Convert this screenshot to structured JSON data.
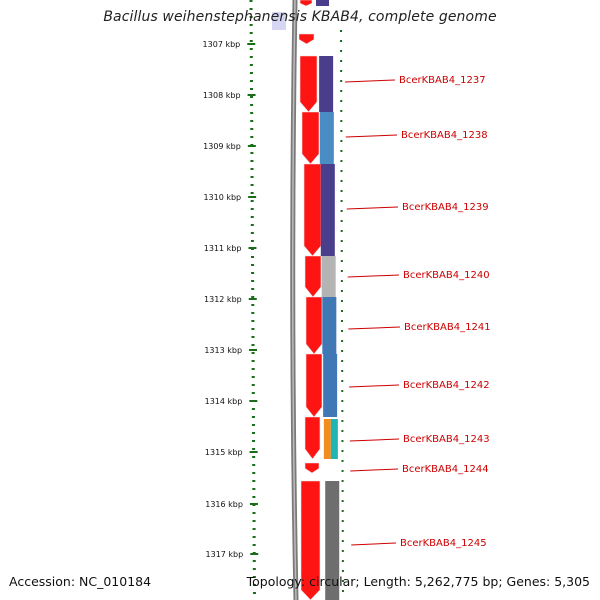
{
  "title": "Bacillus weihenstephanensis KBAB4, complete genome",
  "footer": {
    "accession": "Accession: NC_010184",
    "summary": "Topology: circular; Length: 5,262,775 bp; Genes: 5,305"
  },
  "colors": {
    "ruler": "#1a6e1a",
    "backbone_outer": "#7a7a7a",
    "backbone_inner": "#bcbcbc",
    "forward_gene": "#ff1414",
    "label": "#cc0000",
    "leader": "#cc0000"
  },
  "ruler": {
    "unit": "kbp",
    "ticks": [
      "1307 kbp",
      "1308 kbp",
      "1309 kbp",
      "1310 kbp",
      "1311 kbp",
      "1312 kbp",
      "1313 kbp",
      "1314 kbp",
      "1315 kbp",
      "1316 kbp",
      "1317 kbp"
    ]
  },
  "genes": [
    {
      "label": "BcerKBAB4_1237",
      "category_color": "#4a3d8c"
    },
    {
      "label": "BcerKBAB4_1238",
      "category_color": "#4a8cc4"
    },
    {
      "label": "BcerKBAB4_1239",
      "category_color": "#4a3d8c"
    },
    {
      "label": "BcerKBAB4_1240",
      "category_color": "#b4b4b4"
    },
    {
      "label": "BcerKBAB4_1241",
      "category_color": "#3f78b4"
    },
    {
      "label": "BcerKBAB4_1242",
      "category_color": "#3f78b4"
    },
    {
      "label": "BcerKBAB4_1243",
      "category_color": "#f28c1e"
    },
    {
      "label": "BcerKBAB4_1244",
      "category_color": "#ffffff"
    },
    {
      "label": "BcerKBAB4_1245",
      "category_color": "#6e6e6e"
    }
  ]
}
